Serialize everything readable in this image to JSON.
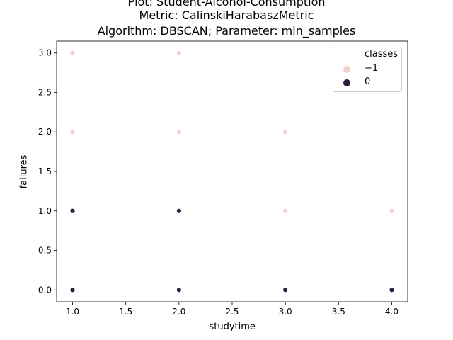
{
  "chart_data": {
    "type": "scatter",
    "title_lines": [
      "Plot: Student-Alcohol-Consumption",
      "Metric: CalinskiHarabaszMetric",
      "Algorithm: DBSCAN; Parameter: min_samples"
    ],
    "xlabel": "studytime",
    "ylabel": "failures",
    "xlim": [
      0.85,
      4.15
    ],
    "ylim": [
      -0.15,
      3.15
    ],
    "xticks": [
      1.0,
      1.5,
      2.0,
      2.5,
      3.0,
      3.5,
      4.0
    ],
    "xtick_labels": [
      "1.0",
      "1.5",
      "2.0",
      "2.5",
      "3.0",
      "3.5",
      "4.0"
    ],
    "yticks": [
      0.0,
      0.5,
      1.0,
      1.5,
      2.0,
      2.5,
      3.0
    ],
    "ytick_labels": [
      "0.0",
      "0.5",
      "1.0",
      "1.5",
      "2.0",
      "2.5",
      "3.0"
    ],
    "grid": false,
    "legend_position": "top-right",
    "legend_title": "classes",
    "series": [
      {
        "name": "−1",
        "color": "#f0d3cc",
        "points": [
          [
            1,
            3
          ],
          [
            2,
            3
          ],
          [
            1,
            2
          ],
          [
            2,
            2
          ],
          [
            3,
            2
          ],
          [
            3,
            1
          ],
          [
            4,
            1
          ],
          [
            2,
            0
          ]
        ]
      },
      {
        "name": "0",
        "color": "#2d1e3e",
        "points": [
          [
            1,
            1
          ],
          [
            2,
            1
          ],
          [
            1,
            0
          ],
          [
            2,
            0
          ],
          [
            3,
            0
          ],
          [
            4,
            0
          ]
        ]
      }
    ]
  }
}
